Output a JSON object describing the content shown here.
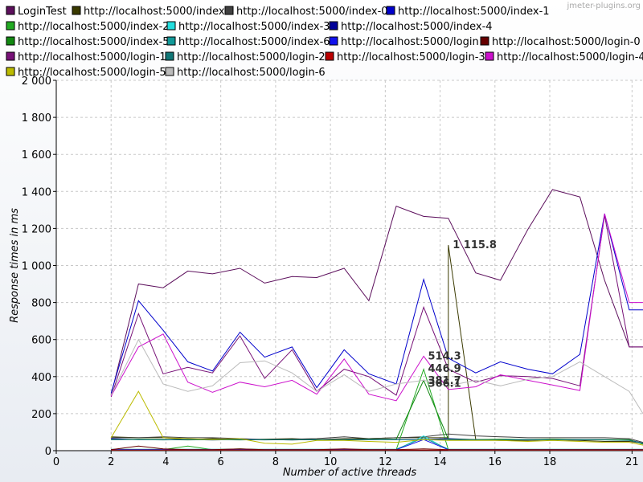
{
  "watermark": "jmeter-plugins.org",
  "chart_data": {
    "type": "line",
    "title": "",
    "xlabel": "Number of active threads",
    "ylabel": "Response times in ms",
    "xlim": [
      0,
      21.4
    ],
    "ylim": [
      0,
      2000
    ],
    "x_ticks": [
      0,
      2,
      4,
      6,
      8,
      10,
      12,
      14,
      16,
      18,
      21
    ],
    "y_ticks": [
      0,
      200,
      400,
      600,
      800,
      1000,
      1200,
      1400,
      1600,
      1800,
      2000
    ],
    "y_tick_labels": [
      "0",
      "200",
      "400",
      "600",
      "800",
      "1 000",
      "1 200",
      "1 400",
      "1 600",
      "1 800",
      "2 000"
    ],
    "grid": true,
    "legend_position": "top",
    "data_labels": [
      {
        "x": 14.4,
        "y": 1115.8,
        "text": "1 115.8"
      },
      {
        "x": 13.5,
        "y": 514.3,
        "text": "514.3"
      },
      {
        "x": 13.5,
        "y": 446.9,
        "text": "446.9"
      },
      {
        "x": 13.5,
        "y": 381.7,
        "text": "381.7"
      },
      {
        "x": 13.5,
        "y": 366.1,
        "text": "366.1"
      }
    ],
    "series": [
      {
        "name": "LoginTest",
        "color": "#5c0f5c",
        "x": [
          2,
          3,
          3.9,
          4.8,
          5.7,
          6.7,
          7.6,
          8.6,
          9.5,
          10.5,
          11.4,
          12.4,
          13.4,
          14.3,
          15.3,
          16.2,
          17.2,
          18.1,
          19.1,
          20.0,
          20.9,
          21.4
        ],
        "y": [
          300,
          900,
          880,
          970,
          955,
          985,
          905,
          940,
          935,
          985,
          810,
          1320,
          1265,
          1255,
          960,
          920,
          1195,
          1410,
          1370,
          920,
          560,
          560
        ]
      },
      {
        "name": "http://localhost:5000/index",
        "color": "#3a3a00",
        "x": [
          2,
          3,
          3.9,
          4.8,
          5.7,
          6.7,
          7.6,
          8.6,
          9.5,
          10.5,
          11.4,
          12.4,
          13.4,
          14.3,
          14.3,
          15.3,
          16.2,
          17.2,
          18.1,
          19.1,
          20.0,
          20.9,
          21.4
        ],
        "y": [
          75,
          70,
          70,
          60,
          65,
          60,
          62,
          65,
          60,
          65,
          65,
          70,
          70,
          70,
          1110,
          60,
          55,
          55,
          60,
          55,
          50,
          50,
          40
        ]
      },
      {
        "name": "http://localhost:5000/index-0",
        "color": "#404040",
        "x": [
          2,
          3,
          3.9,
          4.8,
          5.7,
          6.7,
          7.6,
          8.6,
          9.5,
          10.5,
          11.4,
          12.4,
          13.4,
          14.3,
          15.3,
          16.2,
          17.2,
          18.1,
          19.1,
          20.0,
          20.9,
          21.4
        ],
        "y": [
          70,
          70,
          75,
          70,
          70,
          65,
          60,
          62,
          65,
          75,
          65,
          70,
          75,
          90,
          80,
          75,
          70,
          70,
          70,
          70,
          65,
          45
        ]
      },
      {
        "name": "http://localhost:5000/index-1",
        "color": "#0000cc",
        "x": [
          2,
          3,
          3.9,
          4.8,
          5.7,
          6.7,
          7.6,
          8.6,
          9.5,
          10.5,
          11.4,
          12.4,
          13.4,
          14.3,
          15.3,
          16.2,
          17.2,
          18.1,
          19.1,
          20.0,
          20.9,
          21.4
        ],
        "y": [
          310,
          810,
          650,
          480,
          430,
          640,
          505,
          560,
          340,
          545,
          415,
          360,
          925,
          500,
          420,
          480,
          440,
          415,
          520,
          1280,
          760,
          760
        ]
      },
      {
        "name": "http://localhost:5000/index-2",
        "color": "#22aa22",
        "x": [
          2,
          3,
          3.9,
          4.8,
          5.7,
          6.7,
          7.6,
          8.6,
          9.5,
          10.5,
          11.4,
          12.4,
          13.4,
          14.3,
          15.3,
          16.2,
          17.2,
          18.1,
          19.1,
          20.0,
          20.9,
          21.4
        ],
        "y": [
          5,
          5,
          5,
          25,
          5,
          10,
          5,
          5,
          5,
          5,
          5,
          5,
          440,
          5,
          5,
          5,
          5,
          5,
          5,
          5,
          5,
          5
        ]
      },
      {
        "name": "http://localhost:5000/index-3",
        "color": "#22dddd",
        "x": [
          2,
          3,
          3.9,
          4.8,
          5.7,
          6.7,
          7.6,
          8.6,
          9.5,
          10.5,
          11.4,
          12.4,
          13.4,
          14.3,
          15.3,
          16.2,
          17.2,
          18.1,
          19.1,
          20.0,
          20.9,
          21.4
        ],
        "y": [
          3,
          3,
          3,
          3,
          3,
          3,
          3,
          3,
          3,
          3,
          3,
          3,
          80,
          3,
          3,
          3,
          3,
          3,
          3,
          3,
          3,
          3
        ]
      },
      {
        "name": "http://localhost:5000/index-4",
        "color": "#000099",
        "x": [
          2,
          3,
          3.9,
          4.8,
          5.7,
          6.7,
          7.6,
          8.6,
          9.5,
          10.5,
          11.4,
          12.4,
          13.4,
          14.3,
          15.3,
          16.2,
          17.2,
          18.1,
          19.1,
          20.0,
          20.9,
          21.4
        ],
        "y": [
          65,
          60,
          60,
          60,
          58,
          60,
          60,
          58,
          60,
          60,
          60,
          60,
          60,
          65,
          60,
          60,
          60,
          60,
          60,
          60,
          58,
          40
        ]
      },
      {
        "name": "http://localhost:5000/index-5",
        "color": "#118811",
        "x": [
          2,
          3,
          3.9,
          4.8,
          5.7,
          6.7,
          7.6,
          8.6,
          9.5,
          10.5,
          11.4,
          12.4,
          13.4,
          14.3,
          15.3,
          16.2,
          17.2,
          18.1,
          19.1,
          20.0,
          20.9,
          21.4
        ],
        "y": [
          60,
          62,
          60,
          58,
          60,
          58,
          60,
          58,
          60,
          58,
          62,
          62,
          380,
          62,
          60,
          62,
          60,
          62,
          60,
          60,
          60,
          35
        ]
      },
      {
        "name": "http://localhost:5000/index-6",
        "color": "#119999",
        "x": [
          2,
          3,
          3.9,
          4.8,
          5.7,
          6.7,
          7.6,
          8.6,
          9.5,
          10.5,
          11.4,
          12.4,
          13.4,
          14.3,
          15.3,
          16.2,
          17.2,
          18.1,
          19.1,
          20.0,
          20.9,
          21.4
        ],
        "y": [
          8,
          8,
          8,
          8,
          8,
          8,
          8,
          8,
          8,
          8,
          8,
          8,
          70,
          8,
          8,
          8,
          8,
          8,
          8,
          8,
          8,
          8
        ]
      },
      {
        "name": "http://localhost:5000/login",
        "color": "#1111ee",
        "x": [
          2,
          3,
          3.9,
          4.8,
          5.7,
          6.7,
          7.6,
          8.6,
          9.5,
          10.5,
          11.4,
          12.4,
          13.4,
          14.3,
          15.3,
          16.2,
          17.2,
          18.1,
          19.1,
          20.0,
          20.9,
          21.4
        ],
        "y": [
          5,
          5,
          5,
          5,
          5,
          5,
          5,
          5,
          5,
          5,
          5,
          5,
          60,
          5,
          5,
          5,
          5,
          5,
          5,
          5,
          5,
          5
        ]
      },
      {
        "name": "http://localhost:5000/login-0",
        "color": "#660000",
        "x": [
          2,
          3,
          3.9,
          4.8,
          5.7,
          6.7,
          7.6,
          8.6,
          9.5,
          10.5,
          11.4,
          12.4,
          13.4,
          14.3,
          15.3,
          16.2,
          17.2,
          18.1,
          19.1,
          20.0,
          20.9,
          21.4
        ],
        "y": [
          5,
          25,
          10,
          5,
          5,
          10,
          5,
          5,
          5,
          10,
          5,
          5,
          10,
          5,
          5,
          5,
          5,
          5,
          5,
          5,
          5,
          5
        ]
      },
      {
        "name": "http://localhost:5000/login-1",
        "color": "#771177",
        "x": [
          2,
          3,
          3.9,
          4.8,
          5.7,
          6.7,
          7.6,
          8.6,
          9.5,
          10.5,
          11.4,
          12.4,
          13.4,
          14.3,
          15.3,
          16.2,
          17.2,
          18.1,
          19.1,
          20.0,
          20.9,
          21.4
        ],
        "y": [
          290,
          740,
          415,
          450,
          420,
          620,
          390,
          545,
          320,
          440,
          400,
          300,
          775,
          440,
          370,
          405,
          400,
          390,
          350,
          1270,
          560,
          560
        ]
      },
      {
        "name": "http://localhost:5000/login-2",
        "color": "#117777",
        "x": [
          2,
          3,
          3.9,
          4.8,
          5.7,
          6.7,
          7.6,
          8.6,
          9.5,
          10.5,
          11.4,
          12.4,
          13.4,
          14.3,
          15.3,
          16.2,
          17.2,
          18.1,
          19.1,
          20.0,
          20.9,
          21.4
        ],
        "y": [
          60,
          60,
          58,
          60,
          58,
          60,
          58,
          60,
          58,
          60,
          60,
          60,
          60,
          60,
          58,
          58,
          60,
          58,
          60,
          58,
          55,
          40
        ]
      },
      {
        "name": "http://localhost:5000/login-3",
        "color": "#bb0000",
        "x": [
          2,
          3,
          3.9,
          4.8,
          5.7,
          6.7,
          7.6,
          8.6,
          9.5,
          10.5,
          11.4,
          12.4,
          13.4,
          14.3,
          15.3,
          16.2,
          17.2,
          18.1,
          19.1,
          20.0,
          20.9,
          21.4
        ],
        "y": [
          3,
          3,
          3,
          3,
          3,
          3,
          3,
          3,
          3,
          3,
          3,
          3,
          3,
          3,
          3,
          3,
          3,
          3,
          3,
          3,
          3,
          3
        ]
      },
      {
        "name": "http://localhost:5000/login-4",
        "color": "#cc11cc",
        "x": [
          2,
          3,
          3.9,
          4.8,
          5.7,
          6.7,
          7.6,
          8.6,
          9.5,
          10.5,
          11.4,
          12.4,
          13.4,
          14.3,
          15.3,
          16.2,
          17.2,
          18.1,
          19.1,
          20.0,
          20.9,
          21.4
        ],
        "y": [
          295,
          560,
          630,
          370,
          315,
          370,
          345,
          380,
          305,
          495,
          305,
          270,
          510,
          330,
          345,
          410,
          380,
          355,
          325,
          1280,
          800,
          800
        ]
      },
      {
        "name": "http://localhost:5000/login-5",
        "color": "#bbbb00",
        "x": [
          2,
          3,
          3.9,
          4.8,
          5.7,
          6.7,
          7.6,
          8.6,
          9.5,
          10.5,
          11.4,
          12.4,
          13.4,
          14.3,
          15.3,
          16.2,
          17.2,
          18.1,
          19.1,
          20.0,
          20.9,
          21.4
        ],
        "y": [
          70,
          320,
          70,
          65,
          60,
          65,
          40,
          35,
          55,
          55,
          50,
          45,
          60,
          55,
          55,
          55,
          50,
          55,
          50,
          45,
          45,
          30
        ]
      },
      {
        "name": "http://localhost:5000/login-6",
        "color": "#bbbbbb",
        "x": [
          2,
          3,
          3.9,
          4.8,
          5.7,
          6.7,
          7.6,
          8.6,
          9.5,
          10.5,
          11.4,
          12.4,
          13.4,
          14.3,
          15.3,
          16.2,
          17.2,
          18.1,
          19.1,
          20.0,
          20.9,
          21.4
        ],
        "y": [
          300,
          600,
          360,
          320,
          350,
          475,
          485,
          420,
          320,
          410,
          320,
          360,
          380,
          350,
          380,
          350,
          385,
          400,
          480,
          400,
          320,
          200
        ]
      }
    ]
  }
}
